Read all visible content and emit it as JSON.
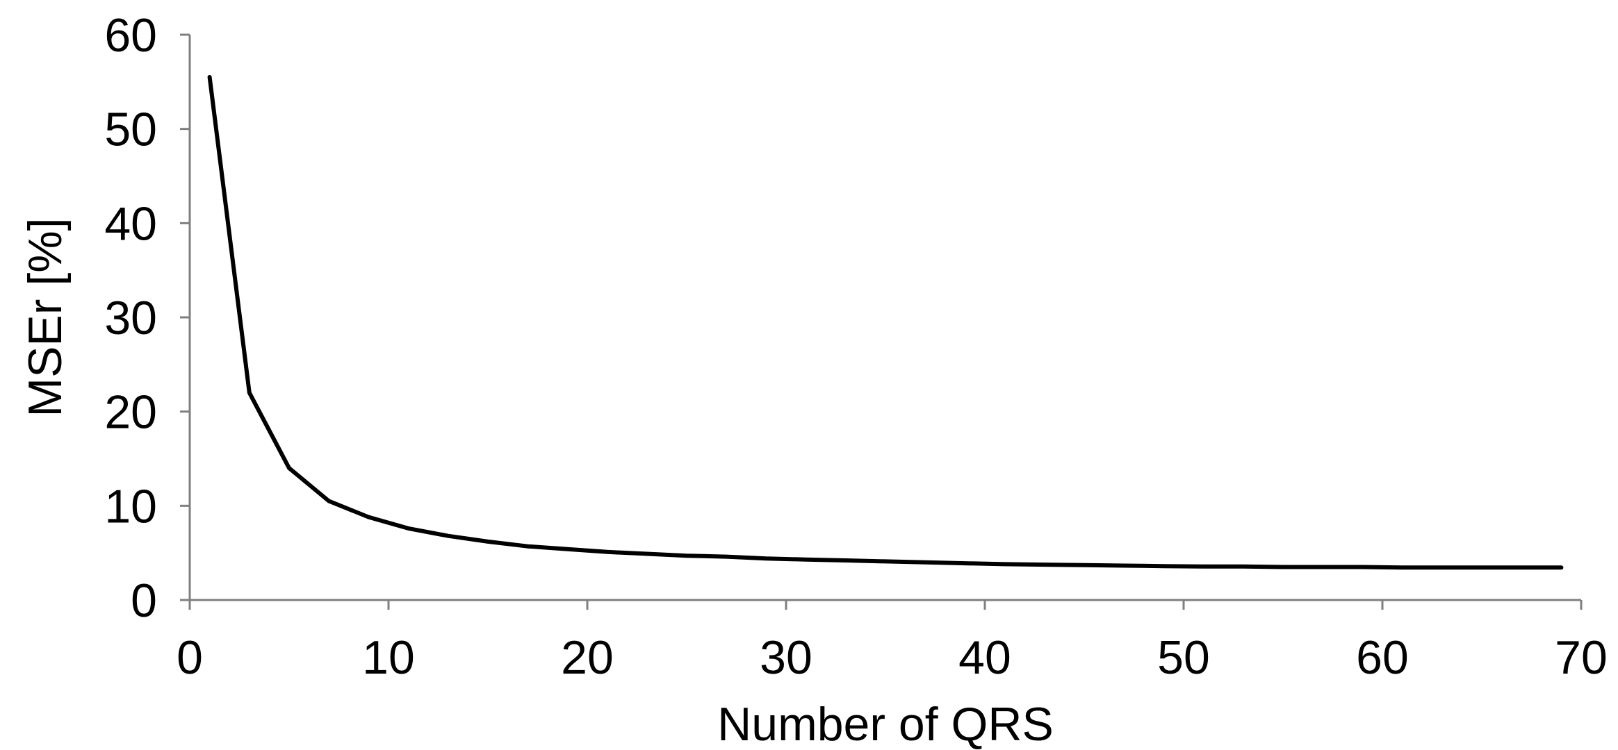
{
  "chart_data": {
    "type": "line",
    "title": "",
    "xlabel": "Number of QRS",
    "ylabel": "MSEr [%]",
    "xlim": [
      0,
      70
    ],
    "ylim": [
      0,
      60
    ],
    "xticks": [
      0,
      10,
      20,
      30,
      40,
      50,
      60,
      70
    ],
    "yticks": [
      0,
      10,
      20,
      30,
      40,
      50,
      60
    ],
    "grid": false,
    "legend": "none",
    "series": [
      {
        "color": "#000000",
        "x": [
          1,
          3,
          5,
          7,
          9,
          11,
          13,
          15,
          17,
          19,
          21,
          23,
          25,
          27,
          29,
          31,
          33,
          35,
          37,
          39,
          41,
          43,
          45,
          47,
          49,
          51,
          53,
          55,
          57,
          59,
          61,
          63,
          65,
          67,
          69
        ],
        "y": [
          55.5,
          22,
          14,
          10.5,
          8.8,
          7.6,
          6.8,
          6.2,
          5.7,
          5.4,
          5.1,
          4.9,
          4.7,
          4.6,
          4.4,
          4.3,
          4.2,
          4.1,
          4.0,
          3.9,
          3.8,
          3.75,
          3.7,
          3.65,
          3.6,
          3.55,
          3.55,
          3.5,
          3.5,
          3.5,
          3.45,
          3.45,
          3.45,
          3.45,
          3.45
        ]
      }
    ]
  }
}
